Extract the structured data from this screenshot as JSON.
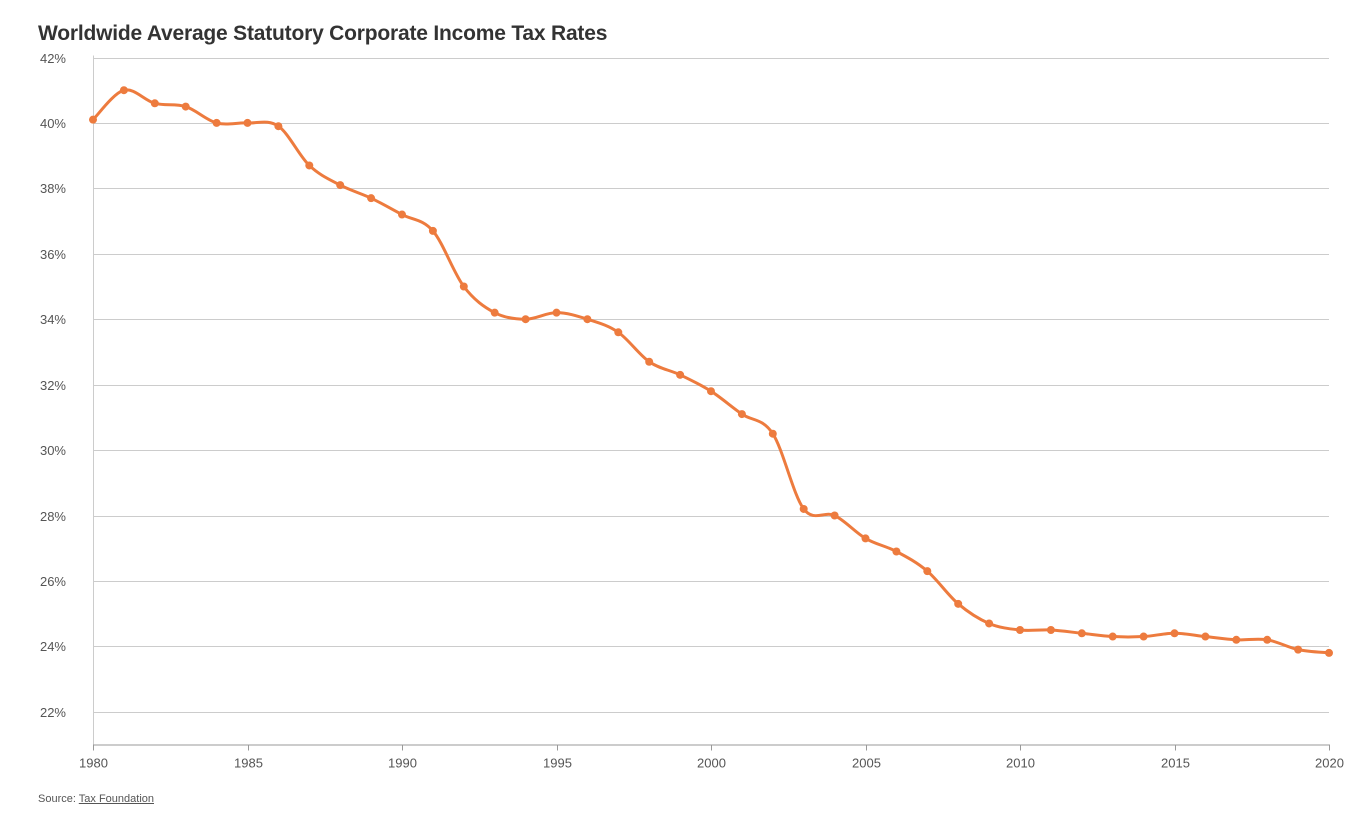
{
  "chart_data": {
    "type": "line",
    "title": "Worldwide Average Statutory Corporate Income Tax Rates",
    "xlabel": "",
    "ylabel": "",
    "x": [
      1980,
      1981,
      1982,
      1983,
      1984,
      1985,
      1986,
      1987,
      1988,
      1989,
      1990,
      1991,
      1992,
      1993,
      1994,
      1995,
      1996,
      1997,
      1998,
      1999,
      2000,
      2001,
      2002,
      2003,
      2004,
      2005,
      2006,
      2007,
      2008,
      2009,
      2010,
      2011,
      2012,
      2013,
      2014,
      2015,
      2016,
      2017,
      2018,
      2019,
      2020
    ],
    "series": [
      {
        "name": "Worldwide average statutory corporate income tax rate",
        "color": "#ed7b3e",
        "values": [
          40.1,
          41.0,
          40.6,
          40.5,
          40.0,
          40.0,
          39.9,
          38.7,
          38.1,
          37.7,
          37.2,
          36.7,
          35.0,
          34.2,
          34.0,
          34.2,
          34.0,
          33.6,
          32.7,
          32.3,
          31.8,
          31.1,
          30.5,
          28.2,
          28.0,
          27.3,
          26.9,
          26.3,
          25.3,
          24.7,
          24.5,
          24.5,
          24.4,
          24.3,
          24.3,
          24.4,
          24.3,
          24.2,
          24.2,
          23.9,
          23.8
        ]
      }
    ],
    "xlim": [
      1980,
      2020
    ],
    "ylim": [
      21,
      42
    ],
    "x_ticks": [
      1980,
      1985,
      1990,
      1995,
      2000,
      2005,
      2010,
      2015,
      2020
    ],
    "x_tick_labels": [
      "1980",
      "1985",
      "1990",
      "1995",
      "2000",
      "2005",
      "2010",
      "2015",
      "2020"
    ],
    "y_ticks": [
      22,
      24,
      26,
      28,
      30,
      32,
      34,
      36,
      38,
      40,
      42
    ],
    "y_tick_labels": [
      "22%",
      "24%",
      "26%",
      "28%",
      "30%",
      "32%",
      "34%",
      "36%",
      "38%",
      "40%",
      "42%"
    ],
    "grid": true,
    "legend": "none"
  },
  "source": {
    "prefix": "Source:",
    "link_text": "Tax Foundation"
  },
  "colors": {
    "line": "#ed7b3e",
    "grid": "#cccccc",
    "axis": "#999999",
    "text": "#555555"
  }
}
